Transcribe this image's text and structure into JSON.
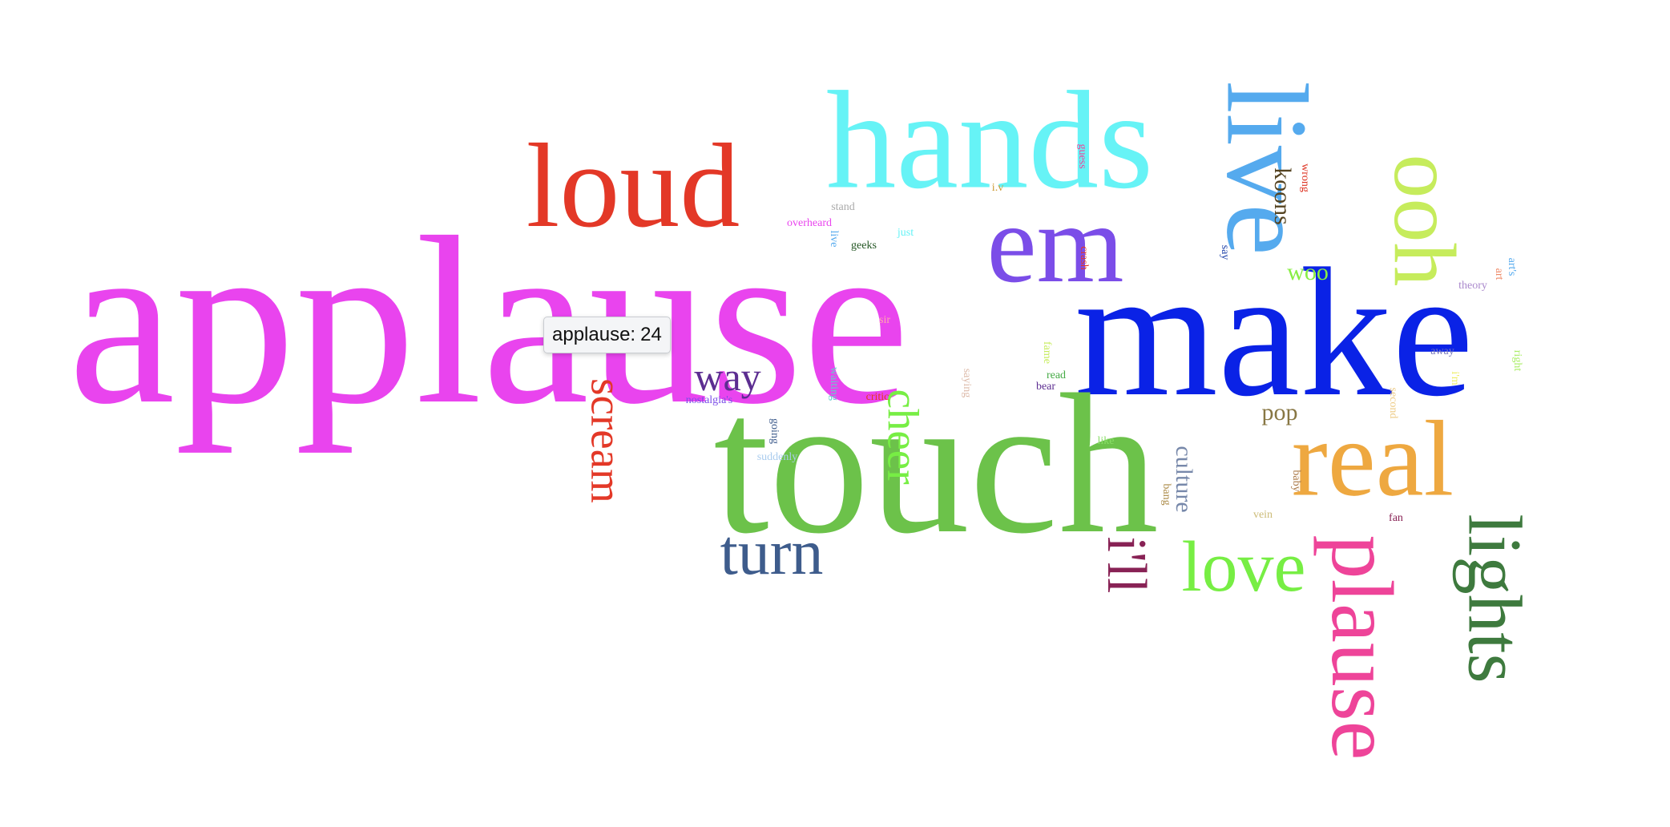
{
  "words": [
    {
      "text": "applause",
      "color": "#e944ee",
      "rotate": 0
    },
    {
      "text": "make",
      "color": "#0a22e6",
      "rotate": 0
    },
    {
      "text": "touch",
      "color": "#6cc24a",
      "rotate": 0
    },
    {
      "text": "hands",
      "color": "#66f3f6",
      "rotate": 0
    },
    {
      "text": "loud",
      "color": "#e33827",
      "rotate": 0
    },
    {
      "text": "em",
      "color": "#7b4de8",
      "rotate": 0
    },
    {
      "text": "live",
      "color": "#55aaee",
      "rotate": 90
    },
    {
      "text": "ooh",
      "color": "#c6ec5c",
      "rotate": 90
    },
    {
      "text": "real",
      "color": "#eea840",
      "rotate": 0
    },
    {
      "text": "plause",
      "color": "#ee4499",
      "rotate": 90
    },
    {
      "text": "lights",
      "color": "#3e7a3e",
      "rotate": 90
    },
    {
      "text": "love",
      "color": "#77ee44",
      "rotate": 0
    },
    {
      "text": "turn",
      "color": "#3e5c8c",
      "rotate": 0
    },
    {
      "text": "i'll",
      "color": "#882255",
      "rotate": 90
    },
    {
      "text": "scream",
      "color": "#e33827",
      "rotate": 90
    },
    {
      "text": "cheer",
      "color": "#77ee44",
      "rotate": 90
    },
    {
      "text": "way",
      "color": "#5c2d91",
      "rotate": 0
    },
    {
      "text": "culture",
      "color": "#7788aa",
      "rotate": 90
    },
    {
      "text": "woo",
      "color": "#88ee44",
      "rotate": 0
    },
    {
      "text": "koons",
      "color": "#554422",
      "rotate": 90
    },
    {
      "text": "pop",
      "color": "#887744",
      "rotate": 0
    },
    {
      "text": "stand",
      "color": "#aaaaaa",
      "rotate": 0
    },
    {
      "text": "overheard",
      "color": "#e944ee",
      "rotate": 0
    },
    {
      "text": "live",
      "color": "#55aaee",
      "rotate": 90
    },
    {
      "text": "just",
      "color": "#66f3f6",
      "rotate": 0
    },
    {
      "text": "geeks",
      "color": "#225522",
      "rotate": 0
    },
    {
      "text": "i.v",
      "color": "#cc9933",
      "rotate": 0
    },
    {
      "text": "guess",
      "color": "#ee4499",
      "rotate": 90
    },
    {
      "text": "crash",
      "color": "#e33827",
      "rotate": 90
    },
    {
      "text": "wrong",
      "color": "#dd3322",
      "rotate": 90
    },
    {
      "text": "say",
      "color": "#2244aa",
      "rotate": 90
    },
    {
      "text": "theory",
      "color": "#aa88cc",
      "rotate": 0
    },
    {
      "text": "art",
      "color": "#ee8866",
      "rotate": 90
    },
    {
      "text": "art's",
      "color": "#55aaee",
      "rotate": 90
    },
    {
      "text": "sir",
      "color": "#ffaaaa",
      "rotate": 0
    },
    {
      "text": "fame",
      "color": "#c6ec5c",
      "rotate": 90
    },
    {
      "text": "read",
      "color": "#44aa44",
      "rotate": 0
    },
    {
      "text": "bear",
      "color": "#5c2d91",
      "rotate": 0
    },
    {
      "text": "saying",
      "color": "#ddbbaa",
      "rotate": 90
    },
    {
      "text": "waiting",
      "color": "#66cccc",
      "rotate": 90
    },
    {
      "text": "critic",
      "color": "#e33827",
      "rotate": 0
    },
    {
      "text": "nostalgia's",
      "color": "#7b4de8",
      "rotate": 0
    },
    {
      "text": "going",
      "color": "#3e5c8c",
      "rotate": 90
    },
    {
      "text": "suddenly",
      "color": "#aaccee",
      "rotate": 0
    },
    {
      "text": "like",
      "color": "#88dd66",
      "rotate": 0
    },
    {
      "text": "away",
      "color": "#7777bb",
      "rotate": 0
    },
    {
      "text": "right",
      "color": "#aaee66",
      "rotate": 90
    },
    {
      "text": "i'm",
      "color": "#eeee66",
      "rotate": 90
    },
    {
      "text": "second",
      "color": "#eecc88",
      "rotate": 90
    },
    {
      "text": "baby",
      "color": "#aa7744",
      "rotate": 90
    },
    {
      "text": "bang",
      "color": "#aa8844",
      "rotate": 90
    },
    {
      "text": "vein",
      "color": "#ccbb77",
      "rotate": 0
    },
    {
      "text": "fan",
      "color": "#882255",
      "rotate": 0
    }
  ],
  "tooltip": {
    "word": "applause",
    "count": "24"
  }
}
